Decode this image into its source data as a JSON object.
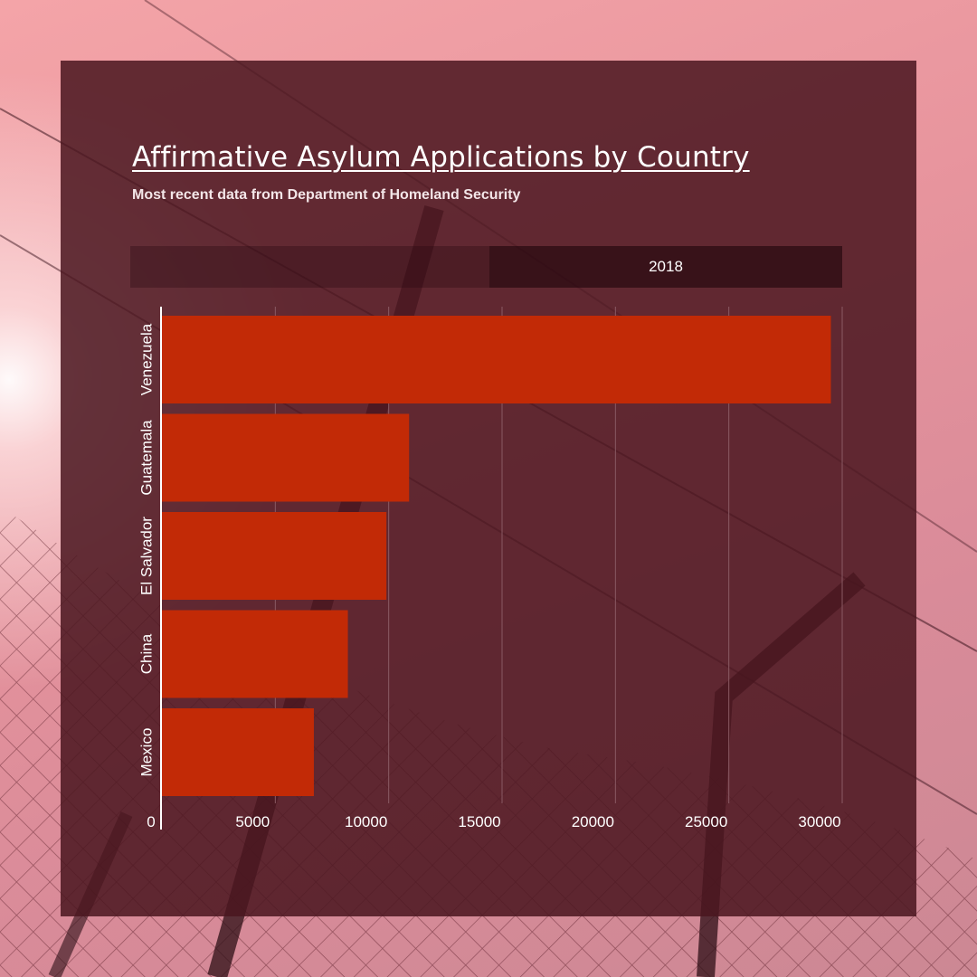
{
  "header": {
    "title": "Affirmative Asylum Applications by Country",
    "subtitle": "Most recent data from Department of Homeland Security"
  },
  "tabs": [
    {
      "label": "2018",
      "selected": true
    }
  ],
  "colors": {
    "bar": "#c22a06",
    "panel": "#4a1620",
    "grid": "#8a5a64"
  },
  "chart_data": {
    "type": "bar",
    "orientation": "horizontal",
    "title": "Affirmative Asylum Applications by Country",
    "subtitle": "Most recent data from Department of Homeland Security",
    "categories": [
      "Venezuela",
      "Guatemala",
      "El Salvador",
      "China",
      "Mexico"
    ],
    "series": [
      {
        "name": "2018",
        "values": [
          29500,
          10900,
          9900,
          8200,
          6700
        ]
      }
    ],
    "xlim": [
      0,
      30000
    ],
    "xticks": [
      0,
      5000,
      10000,
      15000,
      20000,
      25000,
      30000
    ],
    "xlabel": "",
    "ylabel": "",
    "grid": true,
    "legend": "none"
  }
}
